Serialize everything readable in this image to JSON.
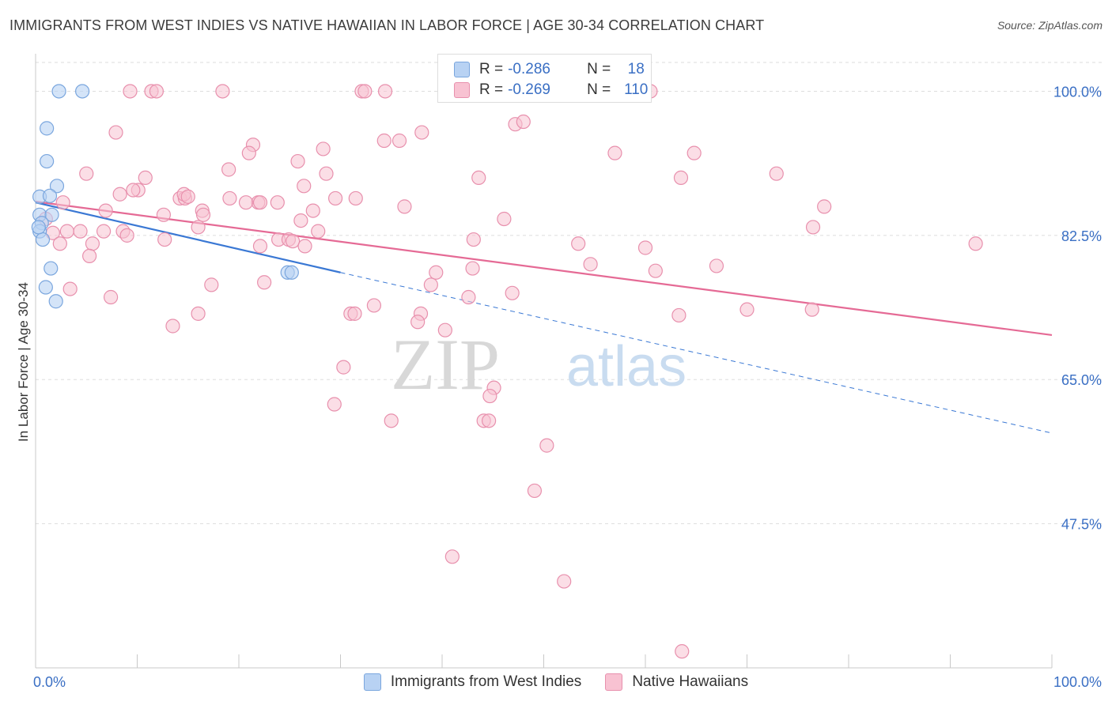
{
  "header": {
    "title": "IMMIGRANTS FROM WEST INDIES VS NATIVE HAWAIIAN IN LABOR FORCE | AGE 30-34 CORRELATION CHART",
    "source": "Source: ZipAtlas.com"
  },
  "watermark": {
    "part1": "ZIP",
    "part2": "atlas"
  },
  "legend": {
    "series1": {
      "r_label": "R =",
      "r_value": "-0.286",
      "n_label": "N =",
      "n_value": "18"
    },
    "series2": {
      "r_label": "R =",
      "r_value": "-0.269",
      "n_label": "N =",
      "n_value": "110"
    }
  },
  "colors": {
    "blue_fill": "#b8d2f3",
    "blue_stroke": "#7aa6de",
    "blue_line": "#3a78d4",
    "pink_fill": "#f8c2d2",
    "pink_stroke": "#e890ad",
    "pink_line": "#e56a95",
    "grid": "#dedede",
    "tick_label": "#3a6fc4"
  },
  "chart_data": {
    "type": "scatter",
    "title": "IMMIGRANTS FROM WEST INDIES VS NATIVE HAWAIIAN IN LABOR FORCE | AGE 30-34 CORRELATION CHART",
    "xlabel": "",
    "ylabel": "In Labor Force | Age 30-34",
    "xlim": [
      0,
      100
    ],
    "ylim": [
      30,
      103.5
    ],
    "x_tick_labels": [
      "0.0%",
      "100.0%"
    ],
    "y_ticks": [
      47.5,
      65.0,
      82.5,
      100.0
    ],
    "y_tick_labels": [
      "47.5%",
      "65.0%",
      "82.5%",
      "100.0%"
    ],
    "grid": true,
    "legend_position": "top-center",
    "series": [
      {
        "name": "Immigrants from West Indies",
        "color": "blue",
        "R": -0.286,
        "N": 18,
        "trend": {
          "x": [
            0,
            30
          ],
          "y": [
            86.5,
            78.0
          ],
          "dashed_extension_to": [
            100,
            58.5
          ]
        },
        "points": [
          [
            2.3,
            100.0
          ],
          [
            4.6,
            100.0
          ],
          [
            1.1,
            95.5
          ],
          [
            1.1,
            91.5
          ],
          [
            2.1,
            88.5
          ],
          [
            0.4,
            87.2
          ],
          [
            1.4,
            87.3
          ],
          [
            0.4,
            85.0
          ],
          [
            1.6,
            85.0
          ],
          [
            0.6,
            84.0
          ],
          [
            0.4,
            83.0
          ],
          [
            0.7,
            82.0
          ],
          [
            1.5,
            78.5
          ],
          [
            24.8,
            78.0
          ],
          [
            25.2,
            78.0
          ],
          [
            1.0,
            76.2
          ],
          [
            2.0,
            74.5
          ],
          [
            0.3,
            83.5
          ]
        ]
      },
      {
        "name": "Native Hawaiians",
        "color": "pink",
        "R": -0.269,
        "N": 110,
        "trend": {
          "x": [
            0,
            100
          ],
          "y": [
            86.6,
            70.4
          ]
        },
        "points": [
          [
            9.3,
            100.0
          ],
          [
            11.4,
            100.0
          ],
          [
            11.9,
            100.0
          ],
          [
            18.4,
            100.0
          ],
          [
            32.1,
            100.0
          ],
          [
            32.4,
            100.0
          ],
          [
            34.4,
            100.0
          ],
          [
            60.5,
            100.0
          ],
          [
            47.2,
            96.0
          ],
          [
            7.9,
            95.0
          ],
          [
            38.0,
            95.0
          ],
          [
            34.3,
            94.0
          ],
          [
            35.8,
            94.0
          ],
          [
            21.4,
            93.5
          ],
          [
            28.3,
            93.0
          ],
          [
            21.0,
            92.5
          ],
          [
            57.0,
            92.5
          ],
          [
            64.8,
            92.5
          ],
          [
            25.8,
            91.5
          ],
          [
            5.0,
            90.0
          ],
          [
            19.0,
            90.5
          ],
          [
            28.6,
            90.0
          ],
          [
            43.6,
            89.5
          ],
          [
            10.8,
            89.5
          ],
          [
            72.9,
            90.0
          ],
          [
            63.5,
            89.5
          ],
          [
            10.1,
            88.0
          ],
          [
            26.4,
            88.5
          ],
          [
            9.6,
            88.0
          ],
          [
            14.2,
            87.0
          ],
          [
            14.7,
            87.0
          ],
          [
            19.1,
            87.0
          ],
          [
            21.9,
            86.5
          ],
          [
            23.8,
            86.5
          ],
          [
            29.5,
            87.0
          ],
          [
            2.7,
            86.5
          ],
          [
            14.6,
            87.5
          ],
          [
            15.0,
            87.2
          ],
          [
            20.7,
            86.5
          ],
          [
            22.1,
            86.5
          ],
          [
            36.3,
            86.0
          ],
          [
            77.6,
            86.0
          ],
          [
            6.9,
            85.5
          ],
          [
            16.4,
            85.5
          ],
          [
            27.3,
            85.5
          ],
          [
            12.6,
            85.0
          ],
          [
            16.5,
            85.0
          ],
          [
            26.1,
            84.3
          ],
          [
            46.1,
            84.5
          ],
          [
            1.0,
            84.5
          ],
          [
            3.1,
            83.0
          ],
          [
            16.0,
            83.5
          ],
          [
            4.4,
            83.0
          ],
          [
            6.7,
            83.0
          ],
          [
            8.6,
            83.0
          ],
          [
            27.8,
            83.0
          ],
          [
            76.5,
            83.5
          ],
          [
            9.0,
            82.5
          ],
          [
            1.7,
            82.8
          ],
          [
            12.7,
            82.0
          ],
          [
            23.9,
            82.0
          ],
          [
            24.9,
            82.0
          ],
          [
            25.3,
            81.8
          ],
          [
            43.1,
            82.0
          ],
          [
            53.4,
            81.5
          ],
          [
            2.4,
            81.5
          ],
          [
            5.6,
            81.5
          ],
          [
            26.5,
            81.2
          ],
          [
            22.1,
            81.2
          ],
          [
            60.0,
            81.0
          ],
          [
            92.5,
            81.5
          ],
          [
            5.3,
            80.0
          ],
          [
            54.6,
            79.0
          ],
          [
            67.0,
            78.8
          ],
          [
            43.0,
            78.5
          ],
          [
            61.0,
            78.2
          ],
          [
            39.4,
            78.0
          ],
          [
            17.3,
            76.5
          ],
          [
            22.5,
            76.8
          ],
          [
            38.9,
            76.5
          ],
          [
            3.4,
            76.0
          ],
          [
            46.9,
            75.5
          ],
          [
            42.6,
            75.0
          ],
          [
            7.4,
            75.0
          ],
          [
            33.3,
            74.0
          ],
          [
            70.0,
            73.5
          ],
          [
            76.4,
            73.5
          ],
          [
            31.0,
            73.0
          ],
          [
            31.4,
            73.0
          ],
          [
            16.0,
            73.0
          ],
          [
            37.9,
            73.0
          ],
          [
            63.3,
            72.8
          ],
          [
            37.6,
            72.0
          ],
          [
            13.5,
            71.5
          ],
          [
            40.3,
            71.0
          ],
          [
            30.3,
            66.5
          ],
          [
            45.1,
            64.0
          ],
          [
            44.7,
            63.0
          ],
          [
            29.4,
            62.0
          ],
          [
            35.0,
            60.0
          ],
          [
            44.1,
            60.0
          ],
          [
            44.6,
            60.0
          ],
          [
            50.3,
            57.0
          ],
          [
            49.1,
            51.5
          ],
          [
            41.0,
            43.5
          ],
          [
            52.0,
            40.5
          ],
          [
            63.6,
            32.0
          ],
          [
            8.3,
            87.5
          ],
          [
            48.0,
            96.3
          ],
          [
            31.5,
            87.0
          ]
        ]
      }
    ]
  },
  "bottom_legend": {
    "items": [
      {
        "label": "Immigrants from West Indies"
      },
      {
        "label": "Native Hawaiians"
      }
    ]
  }
}
